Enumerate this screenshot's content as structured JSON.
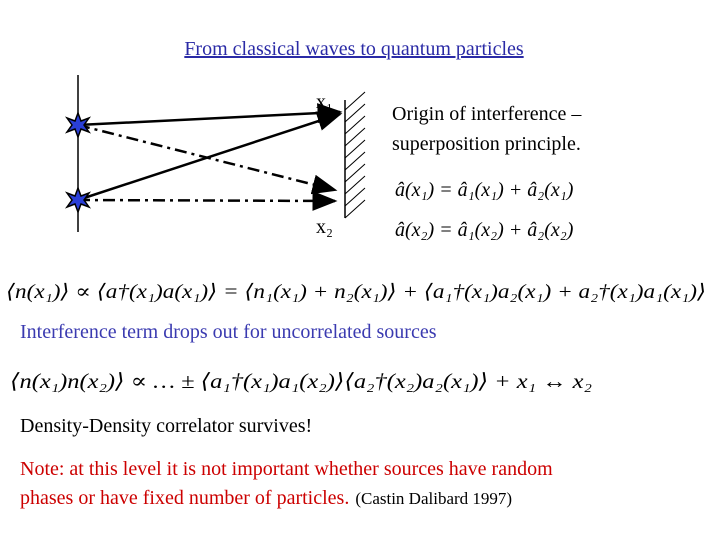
{
  "title": "From classical waves to quantum particles",
  "diagram": {
    "label_top": "x₁",
    "label_bottom": "x₂"
  },
  "statement": [
    "Origin of interference –",
    "superposition principle."
  ],
  "field_equations": [
    "â(x₁) = â₁(x₁) + â₂(x₁)",
    "â(x₂) = â₁(x₂) + â₂(x₂)"
  ],
  "density_equation": "⟨n(x₁)⟩ ∝ ⟨a†(x₁)a(x₁)⟩ = ⟨n₁(x₁) + n₂(x₁)⟩ + ⟨a₁†(x₁)a₂(x₁) + a₂†(x₁)a₁(x₁)⟩",
  "interference_note": "Interference term drops out for uncorrelated sources",
  "correlator_equation": "⟨n(x₁)n(x₂)⟩ ∝ … ± ⟨a₁†(x₁)a₁(x₂)⟩⟨a₂†(x₂)a₂(x₁)⟩ + x₁ ↔ x₂",
  "correlator_note": "Density-Density correlator survives!",
  "note": {
    "lines": [
      "Note: at this level it is not important whether sources have random",
      "phases or have fixed number of particles."
    ],
    "citation": "(Castin Dalibard 1997)"
  }
}
